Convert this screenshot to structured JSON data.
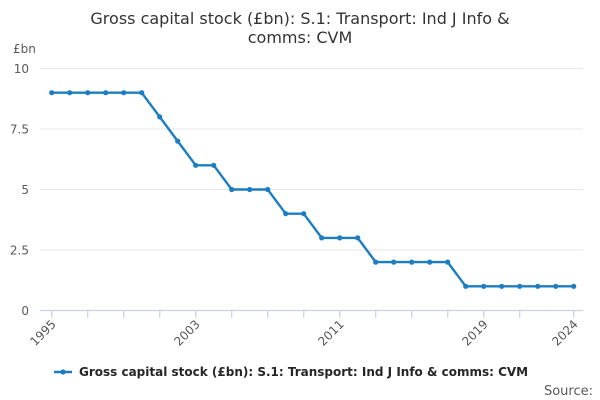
{
  "header": {
    "title_line1": "Gross capital stock (£bn): S.1: Transport: Ind J Info &",
    "title_line2": "comms: CVM"
  },
  "legend": {
    "label": "Gross capital stock (£bn): S.1: Transport: Ind J Info & comms: CVM"
  },
  "footer": {
    "source_label": "Source:"
  },
  "chart_data": {
    "type": "line",
    "title": "Gross capital stock (£bn): S.1: Transport: Ind J Info & comms: CVM",
    "unit_label": "£bn",
    "x": [
      1995,
      1996,
      1997,
      1998,
      1999,
      2000,
      2001,
      2002,
      2003,
      2004,
      2005,
      2006,
      2007,
      2008,
      2009,
      2010,
      2011,
      2012,
      2013,
      2014,
      2015,
      2016,
      2017,
      2018,
      2019,
      2020,
      2021,
      2022,
      2023,
      2024
    ],
    "values": [
      9,
      9,
      9,
      9,
      9,
      9,
      8,
      7,
      6,
      6,
      5,
      5,
      5,
      4,
      4,
      3,
      3,
      3,
      2,
      2,
      2,
      2,
      2,
      1,
      1,
      1,
      1,
      1,
      1,
      1
    ],
    "ylim": [
      0,
      10
    ],
    "yticks": [
      0,
      2.5,
      5,
      7.5,
      10
    ],
    "ytick_labels": [
      "0",
      "2.5",
      "5",
      "7.5",
      "10"
    ],
    "xtick_marks": [
      1995,
      1997,
      1999,
      2001,
      2003,
      2005,
      2007,
      2009,
      2011,
      2013,
      2015,
      2017,
      2019,
      2021,
      2024
    ],
    "xtick_labeled_years": [
      "1995",
      "2003",
      "2011",
      "2019",
      "2024"
    ],
    "xtick_labeled_positions": [
      1995,
      2003,
      2011,
      2019,
      2024
    ],
    "grid": true,
    "legend_position": "bottom",
    "marker": "dot",
    "colors": {
      "line": "#1d7dc2",
      "grid": "#e7e7e7",
      "axis": "#c8d2e2",
      "tick_text": "#595959",
      "title_text": "#333333"
    }
  }
}
